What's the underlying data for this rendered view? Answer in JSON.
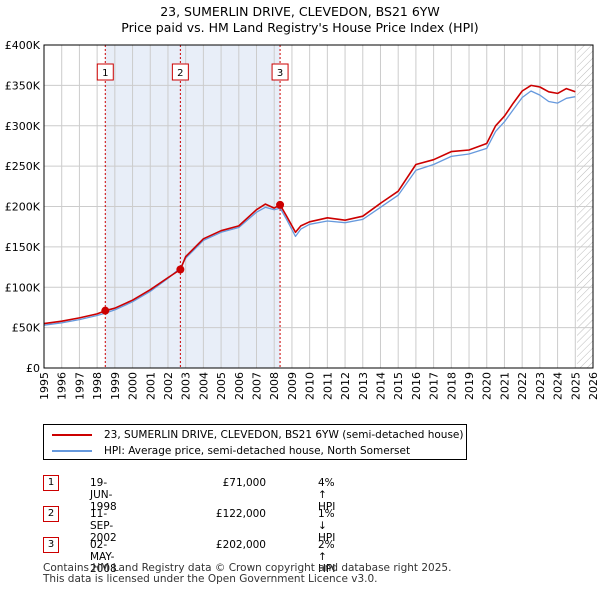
{
  "chart_data": {
    "type": "line",
    "title": "23, SUMERLIN DRIVE, CLEVEDON, BS21 6YW",
    "subtitle": "Price paid vs. HM Land Registry's House Price Index (HPI)",
    "xlabel": "",
    "ylabel": "",
    "xlim": [
      1995,
      2026
    ],
    "ylim": [
      0,
      400000
    ],
    "y_ticks": [
      {
        "value": 0,
        "label": "£0"
      },
      {
        "value": 50000,
        "label": "£50K"
      },
      {
        "value": 100000,
        "label": "£100K"
      },
      {
        "value": 150000,
        "label": "£150K"
      },
      {
        "value": 200000,
        "label": "£200K"
      },
      {
        "value": 250000,
        "label": "£250K"
      },
      {
        "value": 300000,
        "label": "£300K"
      },
      {
        "value": 350000,
        "label": "£350K"
      },
      {
        "value": 400000,
        "label": "£400K"
      }
    ],
    "x_ticks": [
      "1995",
      "1996",
      "1997",
      "1998",
      "1999",
      "2000",
      "2001",
      "2002",
      "2003",
      "2004",
      "2005",
      "2006",
      "2007",
      "2008",
      "2009",
      "2010",
      "2011",
      "2012",
      "2013",
      "2014",
      "2015",
      "2016",
      "2017",
      "2018",
      "2019",
      "2020",
      "2021",
      "2022",
      "2023",
      "2024",
      "2025",
      "2026"
    ],
    "grid": true,
    "series": [
      {
        "name": "23, SUMERLIN DRIVE, CLEVEDON, BS21 6YW (semi-detached house)",
        "color": "#cc0000",
        "x": [
          1995.0,
          1996.0,
          1997.0,
          1998.0,
          1998.46,
          1999.0,
          2000.0,
          2001.0,
          2002.0,
          2002.7,
          2003.0,
          2004.0,
          2005.0,
          2006.0,
          2007.0,
          2007.5,
          2008.0,
          2008.33,
          2008.7,
          2009.2,
          2009.5,
          2010.0,
          2011.0,
          2012.0,
          2013.0,
          2014.0,
          2015.0,
          2016.0,
          2017.0,
          2018.0,
          2019.0,
          2020.0,
          2020.5,
          2021.0,
          2021.5,
          2022.0,
          2022.5,
          2023.0,
          2023.5,
          2024.0,
          2024.5,
          2025.0
        ],
        "y": [
          55000,
          58000,
          62000,
          67000,
          71000,
          74000,
          84000,
          97000,
          112000,
          122000,
          138000,
          160000,
          170000,
          176000,
          196000,
          203000,
          198000,
          202000,
          188000,
          168000,
          176000,
          181000,
          186000,
          183000,
          188000,
          204000,
          219000,
          252000,
          258000,
          268000,
          270000,
          278000,
          300000,
          312000,
          328000,
          343000,
          350000,
          348000,
          342000,
          340000,
          346000,
          342000
        ]
      },
      {
        "name": "HPI: Average price, semi-detached house, North Somerset",
        "color": "#6699dd",
        "x": [
          1995.0,
          1996.0,
          1997.0,
          1998.0,
          1998.46,
          1999.0,
          2000.0,
          2001.0,
          2002.0,
          2002.7,
          2003.0,
          2004.0,
          2005.0,
          2006.0,
          2007.0,
          2007.5,
          2008.0,
          2008.33,
          2008.7,
          2009.2,
          2009.5,
          2010.0,
          2011.0,
          2012.0,
          2013.0,
          2014.0,
          2015.0,
          2016.0,
          2017.0,
          2018.0,
          2019.0,
          2020.0,
          2020.5,
          2021.0,
          2021.5,
          2022.0,
          2022.5,
          2023.0,
          2023.5,
          2024.0,
          2024.5,
          2025.0
        ],
        "y": [
          53000,
          56000,
          60000,
          65000,
          68000,
          72000,
          82000,
          95000,
          111000,
          124000,
          136000,
          158000,
          168000,
          174000,
          193000,
          199000,
          196000,
          198000,
          184000,
          163000,
          172000,
          178000,
          182000,
          180000,
          184000,
          199000,
          214000,
          245000,
          252000,
          262000,
          265000,
          272000,
          293000,
          305000,
          320000,
          335000,
          343000,
          338000,
          330000,
          328000,
          334000,
          336000
        ]
      }
    ],
    "sales": [
      {
        "label": "1",
        "x": 1998.46,
        "y": 71000,
        "date": "19-JUN-1998",
        "price": "£71,000",
        "hpi": "4% ↑ HPI"
      },
      {
        "label": "2",
        "x": 2002.7,
        "y": 122000,
        "date": "11-SEP-2002",
        "price": "£122,000",
        "hpi": "1% ↓ HPI"
      },
      {
        "label": "3",
        "x": 2008.33,
        "y": 202000,
        "date": "02-MAY-2008",
        "price": "£202,000",
        "hpi": "2% ↑ HPI"
      }
    ],
    "forecast_start": 2025.1
  },
  "footer": {
    "line1": "Contains HM Land Registry data © Crown copyright and database right 2025.",
    "line2": "This data is licensed under the Open Government Licence v3.0."
  },
  "colors": {
    "property": "#cc0000",
    "hpi": "#6699dd",
    "shade": "#e8eef8",
    "grid": "#cccccc"
  }
}
